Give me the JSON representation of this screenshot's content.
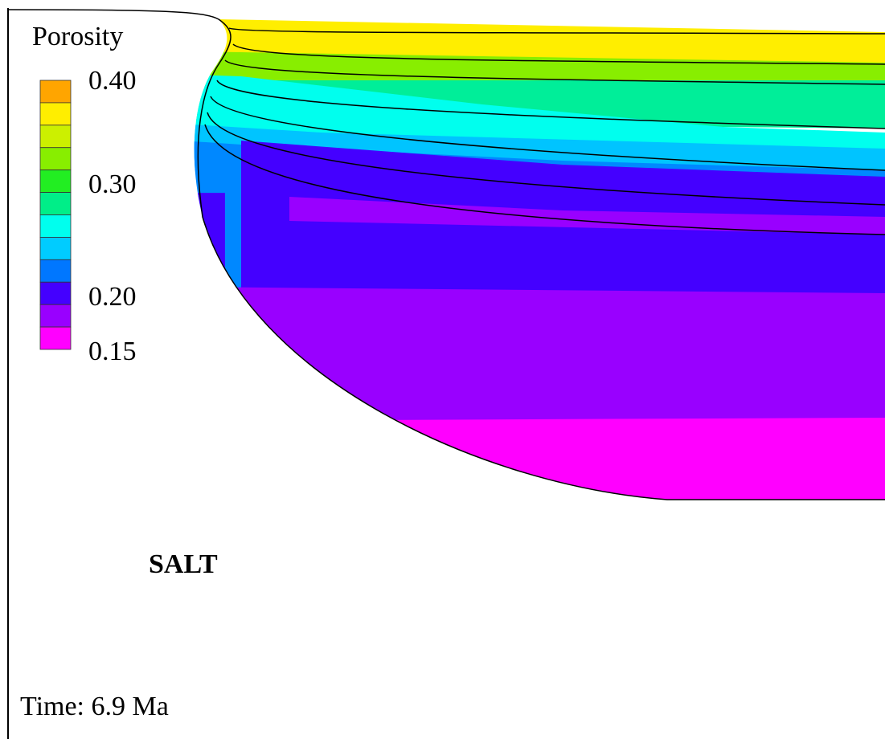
{
  "legend": {
    "title": "Porosity",
    "colors": [
      "#ffa500",
      "#ffee00",
      "#ccf000",
      "#88ee00",
      "#22ee22",
      "#00ee88",
      "#00ffee",
      "#00ccff",
      "#0077ff",
      "#4400ff",
      "#9900ff",
      "#ff00ff"
    ],
    "labels": [
      "0.40",
      "0.30",
      "0.20",
      "0.15"
    ]
  },
  "annotations": {
    "salt": "SALT",
    "time": "Time: 6.9 Ma"
  }
}
